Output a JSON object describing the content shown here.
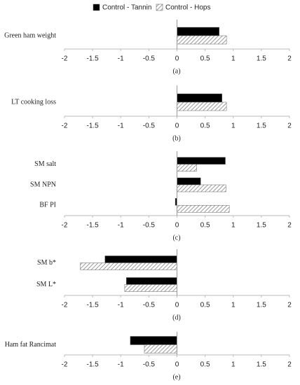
{
  "legend": [
    {
      "name": "Control - Tannin",
      "color": "#000000",
      "hatch": false
    },
    {
      "name": "Control - Hops",
      "color": "#bdbdbd",
      "hatch": true
    }
  ],
  "chart_data": [
    {
      "type": "bar",
      "orientation": "horizontal",
      "caption": "(a)",
      "categories": [
        "Green ham weight"
      ],
      "series": [
        {
          "values": [
            0.75
          ]
        },
        {
          "values": [
            0.88
          ]
        }
      ],
      "xlim": [
        -2,
        2
      ],
      "xticks": [
        -2,
        -1.5,
        -1,
        -0.5,
        0,
        0.5,
        1,
        1.5,
        2
      ]
    },
    {
      "type": "bar",
      "orientation": "horizontal",
      "caption": "(b)",
      "categories": [
        "LT cooking loss"
      ],
      "series": [
        {
          "values": [
            0.8
          ]
        },
        {
          "values": [
            0.88
          ]
        }
      ],
      "xlim": [
        -2,
        2
      ],
      "xticks": [
        -2,
        -1.5,
        -1,
        -0.5,
        0,
        0.5,
        1,
        1.5,
        2
      ]
    },
    {
      "type": "bar",
      "orientation": "horizontal",
      "caption": "(c)",
      "categories": [
        "SM salt",
        "SM NPN",
        "BF PI"
      ],
      "series": [
        {
          "values": [
            0.86,
            0.42,
            -0.03
          ]
        },
        {
          "values": [
            0.35,
            0.87,
            0.93
          ]
        }
      ],
      "xlim": [
        -2,
        2
      ],
      "xticks": [
        -2,
        -1.5,
        -1,
        -0.5,
        0,
        0.5,
        1,
        1.5,
        2
      ]
    },
    {
      "type": "bar",
      "orientation": "horizontal",
      "caption": "(d)",
      "categories": [
        "SM b*",
        "SM L*"
      ],
      "series": [
        {
          "values": [
            -1.28,
            -0.9
          ]
        },
        {
          "values": [
            -1.72,
            -0.93
          ]
        }
      ],
      "xlim": [
        -2,
        2
      ],
      "xticks": [
        -2,
        -1.5,
        -1,
        -0.5,
        0,
        0.5,
        1,
        1.5,
        2
      ]
    },
    {
      "type": "bar",
      "orientation": "horizontal",
      "caption": "(e)",
      "categories": [
        "Ham fat Rancimat"
      ],
      "series": [
        {
          "values": [
            -0.83
          ]
        },
        {
          "values": [
            -0.58
          ]
        }
      ],
      "xlim": [
        -2,
        2
      ],
      "xticks": [
        -2,
        -1.5,
        -1,
        -0.5,
        0,
        0.5,
        1,
        1.5,
        2
      ]
    }
  ]
}
